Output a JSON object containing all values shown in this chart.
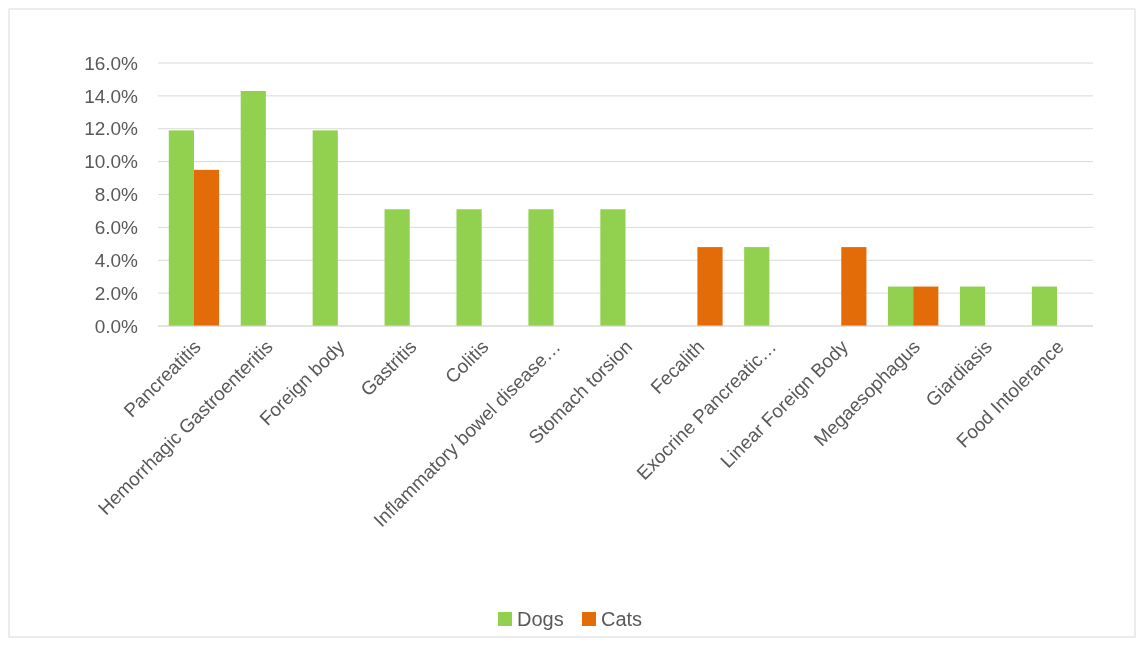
{
  "chart_data": {
    "type": "bar",
    "categories": [
      "Pancreatitis",
      "Hemorrhagic Gastroenteritis",
      "Foreign body",
      "Gastritis",
      "Colitis",
      "Inflammatory bowel disease…",
      "Stomach torsion",
      "Fecalith",
      "Exocrine Pancreatic…",
      "Linear Foreign Body",
      "Megaesophagus",
      "Giardiasis",
      "Food Intolerance"
    ],
    "series": [
      {
        "name": "Dogs",
        "color": "#92d050",
        "values": [
          11.9,
          14.3,
          11.9,
          7.1,
          7.1,
          7.1,
          7.1,
          0,
          4.8,
          0,
          2.4,
          2.4,
          2.4
        ]
      },
      {
        "name": "Cats",
        "color": "#e36c09",
        "values": [
          9.5,
          0,
          0,
          0,
          0,
          0,
          0,
          4.8,
          0,
          4.8,
          2.4,
          0,
          0
        ]
      }
    ],
    "ylim": [
      0,
      16
    ],
    "yticks": [
      {
        "value": 0,
        "label": "0.0%"
      },
      {
        "value": 2,
        "label": "2.0%"
      },
      {
        "value": 4,
        "label": "4.0%"
      },
      {
        "value": 6,
        "label": "6.0%"
      },
      {
        "value": 8,
        "label": "8.0%"
      },
      {
        "value": 10,
        "label": "10.0%"
      },
      {
        "value": 12,
        "label": "12.0%"
      },
      {
        "value": 14,
        "label": "14.0%"
      },
      {
        "value": 16,
        "label": "16.0%"
      }
    ],
    "grid": "y",
    "legend": "bottom"
  }
}
